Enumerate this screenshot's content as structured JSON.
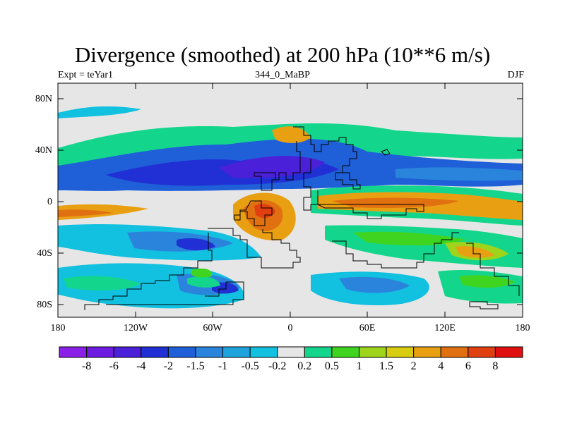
{
  "title": "Divergence (smoothed) at 200 hPa (10**6 m/s)",
  "subtitle_left": "Expt = teYar1",
  "subtitle_center": "344_0_MaBP",
  "subtitle_right": "DJF",
  "y_ticks": [
    "80N",
    "40N",
    "0",
    "40S",
    "80S"
  ],
  "x_ticks": [
    "180",
    "120W",
    "60W",
    "0",
    "60E",
    "120E",
    "180"
  ],
  "colorbar": {
    "colors": [
      "#8a20e8",
      "#6d1be0",
      "#4a20d8",
      "#2030d4",
      "#1f60d8",
      "#2a84dc",
      "#1fa3dc",
      "#12c0df",
      "#e6e6e6",
      "#13d68c",
      "#3fd41f",
      "#9fd41c",
      "#d8cc10",
      "#e8a012",
      "#e07010",
      "#e04010",
      "#e01010"
    ],
    "labels": [
      "-8",
      "-6",
      "-4",
      "-2",
      "-1.5",
      "-1",
      "-0.5",
      "-0.2",
      "0.2",
      "0.5",
      "1",
      "1.5",
      "2",
      "4",
      "6",
      "8"
    ]
  }
}
